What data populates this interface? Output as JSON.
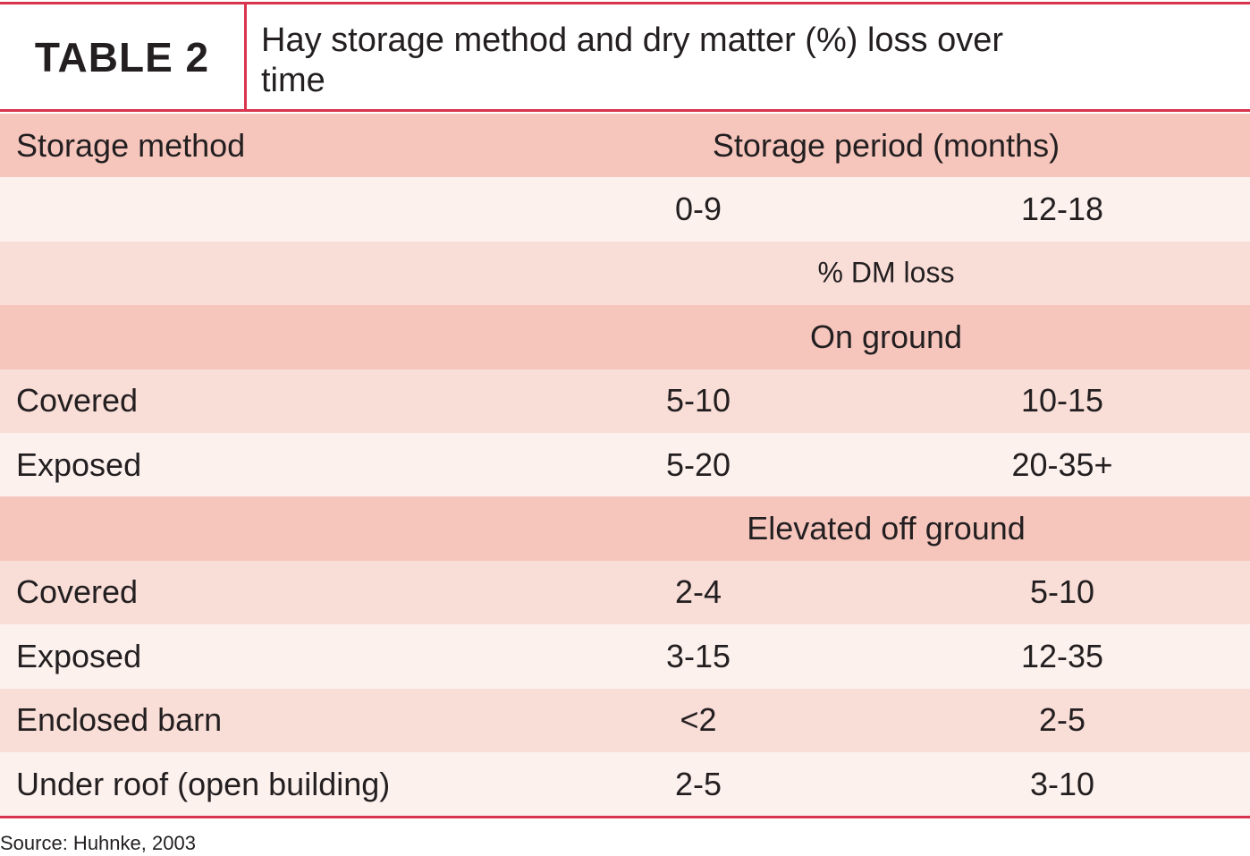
{
  "header": {
    "label": "TABLE 2",
    "title": "Hay storage method and dry matter (%) loss over time"
  },
  "table": {
    "rows": [
      {
        "label": "Storage method",
        "span": "Storage period (months)"
      },
      {
        "values": [
          "0-9",
          "12-18"
        ]
      },
      {
        "span": "% DM loss"
      },
      {
        "span": "On ground"
      },
      {
        "label": "Covered",
        "values": [
          "5-10",
          "10-15"
        ]
      },
      {
        "label": "Exposed",
        "values": [
          "5-20",
          "20-35+"
        ]
      },
      {
        "span": "Elevated off ground"
      },
      {
        "label": "Covered",
        "values": [
          "2-4",
          "5-10"
        ]
      },
      {
        "label": "Exposed",
        "values": [
          "3-15",
          "12-35"
        ]
      },
      {
        "label": "Enclosed barn",
        "values": [
          "<2",
          "2-5"
        ]
      },
      {
        "label": "Under roof (open building)",
        "values": [
          "2-5",
          "3-10"
        ]
      }
    ]
  },
  "source": "Source: Huhnke, 2003"
}
